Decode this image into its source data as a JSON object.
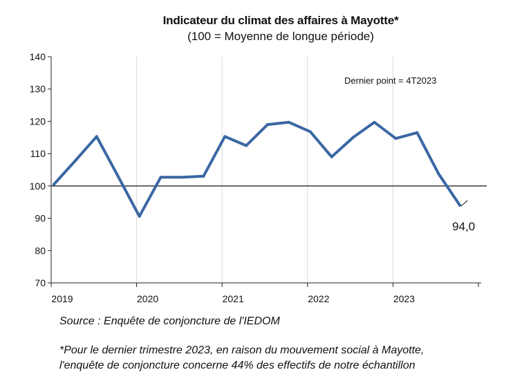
{
  "header": {
    "title": "Indicateur du climat des affaires à Mayotte*",
    "subtitle": "(100 = Moyenne de longue période)"
  },
  "chart_data": {
    "type": "line",
    "title": "Indicateur du climat des affaires à Mayotte*",
    "subtitle": "(100 = Moyenne de longue période)",
    "x_labels": [
      "2019",
      "2020",
      "2021",
      "2022",
      "2023"
    ],
    "x": [
      "T1 2019",
      "T2 2019",
      "T3 2019",
      "T4 2019",
      "T1 2020",
      "T2 2020",
      "T3 2020",
      "T4 2020",
      "T1 2021",
      "T2 2021",
      "T3 2021",
      "T4 2021",
      "T1 2022",
      "T2 2022",
      "T3 2022",
      "T4 2022",
      "T1 2023",
      "T2 2023",
      "T3 2023",
      "T4 2023"
    ],
    "series": [
      {
        "values": [
          100.5,
          107.8,
          115.3,
          103.0,
          90.6,
          102.7,
          102.7,
          103.0,
          115.3,
          112.5,
          119.0,
          119.7,
          116.8,
          109.0,
          115.0,
          119.7,
          114.7,
          116.5,
          103.8,
          94.0
        ],
        "color": "#3a67a4"
      }
    ],
    "ylim": [
      70,
      140
    ],
    "yticks": [
      70,
      80,
      90,
      100,
      110,
      120,
      130,
      140
    ],
    "reference_line": 100,
    "grid": "vertical",
    "annotations": {
      "last_point": "Dernier point = 4T2023",
      "last_value": "94,0"
    }
  },
  "source": "Source : Enquête de conjoncture de l'IEDOM",
  "footnote": {
    "line1": "*Pour le dernier trimestre 2023, en raison du mouvement social à Mayotte,",
    "line2": "l'enquête de conjoncture concerne 44% des effectifs de notre échantillon"
  }
}
